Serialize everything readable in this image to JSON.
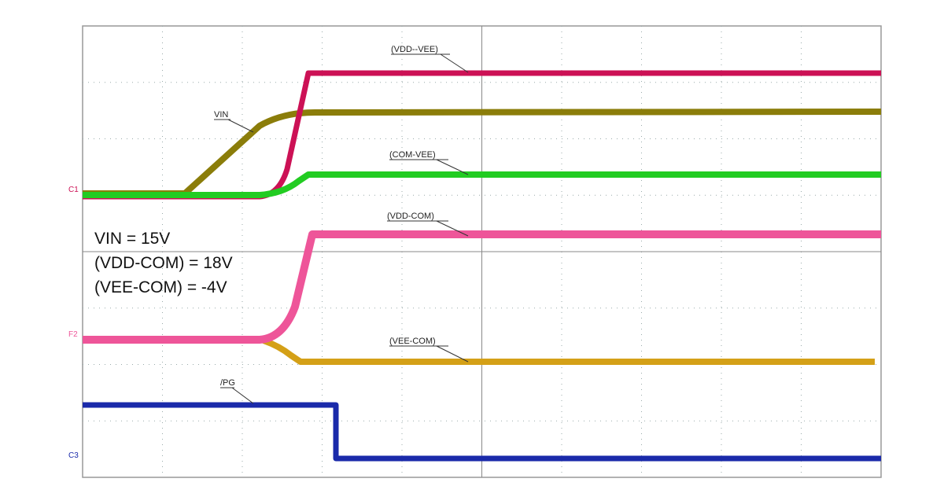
{
  "trace_labels": [
    "(VDD--VEE)",
    "VIN",
    "(COM-VEE)",
    "(VDD-COM)",
    "(VEE-COM)",
    "/PG"
  ],
  "channel_markers": [
    "C1",
    "F2",
    "C3"
  ],
  "annotation": [
    "VIN = 15V",
    "(VDD-COM) = 18V",
    "(VEE-COM) = -4V"
  ]
}
